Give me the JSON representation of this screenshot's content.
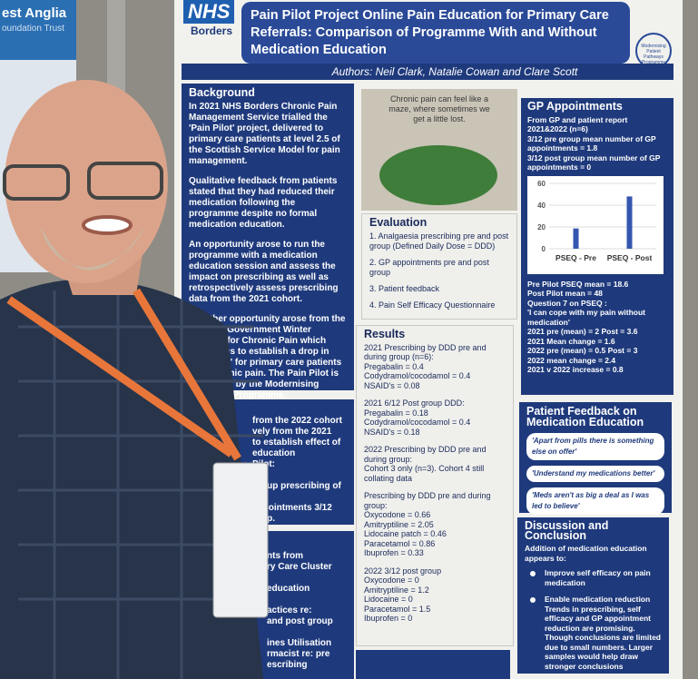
{
  "sign": {
    "text": "est Anglia",
    "sub": "oundation Trust"
  },
  "poster": {
    "logo_nhs": "NHS",
    "logo_org": "Borders",
    "logo_right": "Modernising Patient Pathways Programme",
    "title": "Pain Pilot Project Online Pain Education for Primary Care Referrals: Comparison of Programme With and Without Medication Education",
    "authors": "Authors: Neil Clark, Natalie Cowan and Clare Scott"
  },
  "background": {
    "heading": "Background",
    "paragraphs": [
      "In 2021 NHS Borders Chronic Pain Management Service trialled the 'Pain Pilot' project, delivered to primary care patients at level 2.5 of the Scottish Service Model for pain management.",
      "Qualitative feedback from patients stated that they had reduced their medication following the programme despite no formal medication education.",
      "An opportunity arose to run the programme with a medication education session and assess the impact on prescribing as well as retrospectively assess prescribing data from the 2021 cohort.",
      "A further opportunity arose from the Scottish Government Winter Funding for Chronic Pain which allowed us to establish a drop in 'Pain Hub' for primary care patients with chronic pain. The Pain Pilot is supported by the Modernising Pathways Programme."
    ]
  },
  "box2": {
    "lines": [
      "from the 2022 cohort",
      "vely from the 2021",
      "to establish effect of",
      "education",
      "Pilot:",
      "",
      "group prescribing of",
      "",
      "appointments 3/12",
      "roup."
    ]
  },
  "box3": {
    "lines": [
      "nts from",
      "ry Care Cluster",
      "",
      "education",
      "",
      "actices re:",
      "and post group",
      "",
      "ines Utilisation",
      "rmacist re: pre",
      "escribing"
    ]
  },
  "image_caption": "Chronic pain can feel like a maze, where sometimes we get a little lost.",
  "evaluation": {
    "heading": "Evaluation",
    "items": [
      "1. Analgaesia prescribing pre and post group (Defined Daily Dose = DDD)",
      "2. GP appointments pre and post group",
      "3. Patient feedback",
      "4. Pain Self Efficacy Questionnaire"
    ]
  },
  "results": {
    "heading": "Results",
    "blocks": [
      [
        "2021 Prescribing by DDD pre and during group (n=6):",
        "Pregabalin = 0.4",
        "Codydramol/cocodamol = 0.4",
        "NSAID's = 0.08"
      ],
      [
        "2021 6/12 Post group DDD:",
        "Pregabalin = 0.18",
        "Codydramol/cocodamol = 0.4",
        "NSAID's = 0.18"
      ],
      [
        "2022 Prescribing by DDD pre and during group:",
        "Cohort 3 only (n=3).  Cohort 4 still collating data"
      ],
      [
        "Prescribing by DDD pre and during group:",
        "Oxycodone = 0.66",
        "Amitryptiline = 2.05",
        "Lidocaine patch = 0.46",
        "Paracetamol = 0.86",
        "Ibuprofen = 0.33"
      ],
      [
        "2022 3/12 post group",
        "Oxycodone = 0",
        "Amitryptiline = 1.2",
        "Lidocaine = 0",
        "Paracetamol = 1.5",
        "Ibuprofen = 0"
      ]
    ]
  },
  "gp": {
    "heading": "GP Appointments",
    "lines": [
      "From GP and patient report 2021&2022 (n=6)",
      "3/12 pre group mean number of GP appointments = 1.8",
      "3/12 post group mean number of GP appointments = 0"
    ],
    "chart": {
      "type": "bar",
      "categories": [
        "PSEQ - Pre",
        "PSEQ - Post"
      ],
      "values": [
        18.6,
        48
      ],
      "color": "#3556b0",
      "ylim": [
        0,
        60
      ],
      "yticks": [
        0,
        20,
        40,
        60
      ]
    },
    "pseq_lines": [
      "Pre Pilot PSEQ mean = 18.6",
      "Post Pilot mean = 48",
      "Question 7 on PSEQ :",
      "'I can cope with my pain without medication'",
      "2021 pre (mean) = 2  Post = 3.6",
      "2021 Mean change = 1.6",
      "2022 pre (mean) = 0.5  Post = 3",
      "2022 mean change = 2.4",
      "2021 v 2022 increase = 0.8"
    ]
  },
  "feedback": {
    "heading": "Patient Feedback on Medication Education",
    "quotes": [
      "'Apart from pills there is something else on offer'",
      "'Understand my medications better'",
      "'Meds aren't as big a deal as I was led to believe'"
    ]
  },
  "discussion": {
    "heading": "Discussion and Conclusion",
    "intro": "Addition of medication education appears to:",
    "bullets": [
      "Improve self efficacy on pain medication",
      "Enable medication reduction Trends in prescribing, self efficacy and GP appointment reduction are promising. Though conclusions are limited due to small numbers. Larger samples would help draw stronger conclusions"
    ]
  }
}
